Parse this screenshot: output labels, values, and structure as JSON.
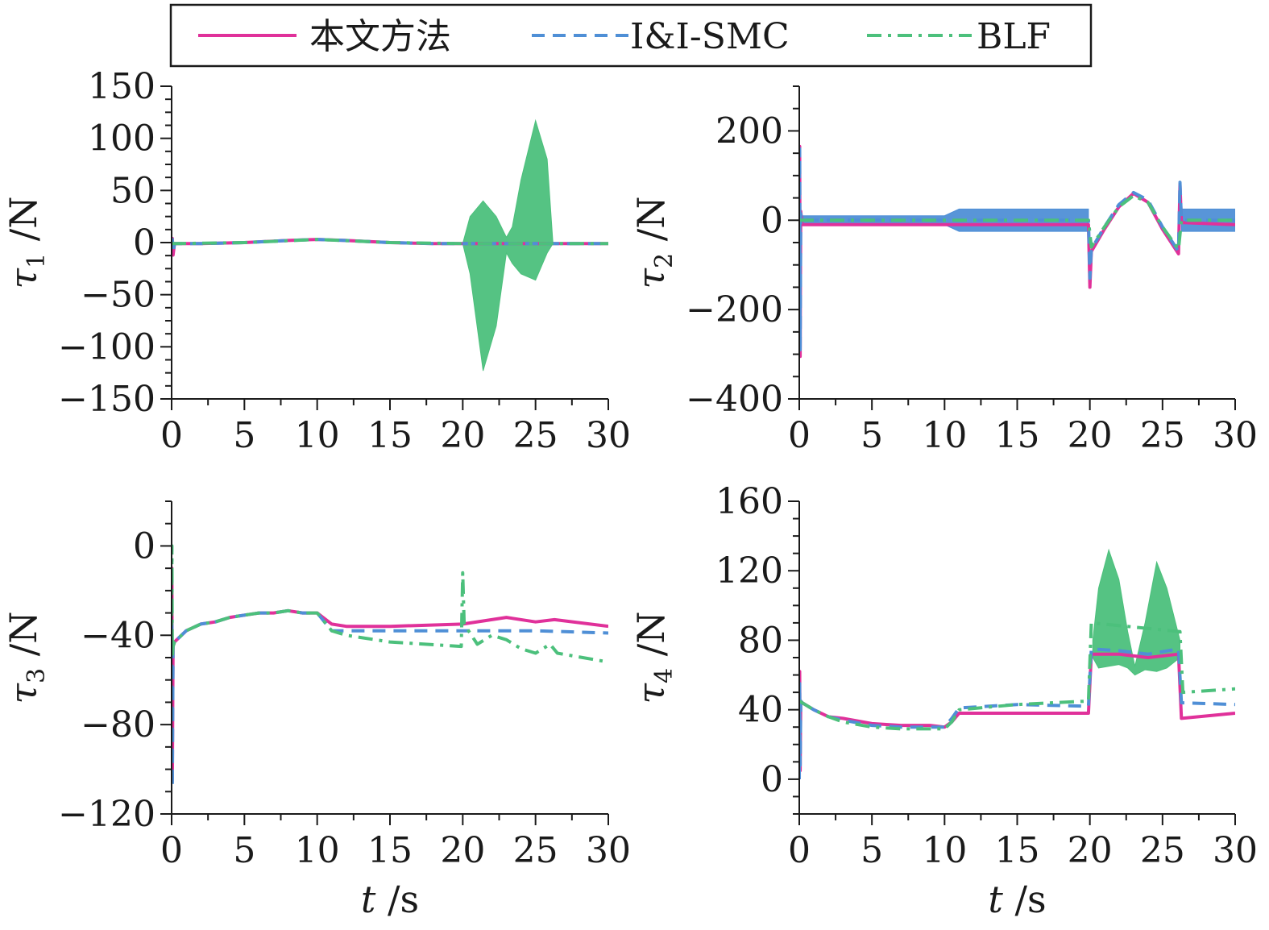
{
  "legend": {
    "entries": [
      {
        "label": "本文方法",
        "color": "#e0319a",
        "dash": "solid"
      },
      {
        "label": "I&I-SMC",
        "color": "#4f8fd6",
        "dash": "dashed"
      },
      {
        "label": "BLF",
        "color": "#4cc07c",
        "dash": "dashdot"
      }
    ]
  },
  "chart_data": [
    {
      "type": "line",
      "id": "tau1",
      "ylabel_sym": "τ",
      "ylabel_sub": "1",
      "ylabel_unit": " /N",
      "xlabel": "",
      "xlim": [
        0,
        30
      ],
      "ylim": [
        -150,
        150
      ],
      "xticks": [
        0,
        5,
        10,
        15,
        20,
        25,
        30
      ],
      "yticks": [
        -150,
        -100,
        -50,
        0,
        50,
        100,
        150
      ],
      "ytick_labels": [
        "−150",
        "−100",
        "−50",
        "0",
        "50",
        "100",
        "150"
      ],
      "series": [
        {
          "name": "本文方法",
          "color": "#e0319a",
          "dash": "solid",
          "x": [
            0,
            0.05,
            0.1,
            0.2,
            2,
            5,
            8,
            10,
            12,
            15,
            18,
            20,
            22,
            25,
            27,
            30
          ],
          "y": [
            0,
            4,
            -12,
            -1,
            -1,
            0,
            2,
            3,
            2,
            0,
            -1,
            -1,
            -1,
            -1,
            -1,
            -1
          ]
        },
        {
          "name": "I&I-SMC",
          "color": "#4f8fd6",
          "dash": "dashed",
          "x": [
            0,
            0.05,
            0.1,
            0.2,
            2,
            5,
            8,
            10,
            12,
            15,
            18,
            20,
            22,
            25,
            27,
            30
          ],
          "y": [
            0,
            3,
            -10,
            -1,
            -1,
            0,
            2,
            3,
            2,
            0,
            -1,
            -1,
            -1,
            -1,
            -1,
            -1
          ]
        },
        {
          "name": "BLF",
          "color": "#4cc07c",
          "dash": "dashdot",
          "x": [
            0,
            0.2,
            5,
            10,
            15,
            20,
            30
          ],
          "y": [
            -1,
            -1,
            0,
            3,
            0,
            -1,
            -1
          ]
        }
      ],
      "bands": [
        {
          "series": "BLF",
          "color": "#4cc07c",
          "x": [
            20,
            20.5,
            21.4,
            22.3,
            23.0,
            23.4,
            24.0,
            25.0,
            25.8,
            26.2
          ],
          "upper": [
            -1,
            25,
            40,
            25,
            5,
            15,
            60,
            117,
            80,
            -1
          ],
          "lower": [
            -1,
            -30,
            -123,
            -80,
            -10,
            -20,
            -30,
            -36,
            -10,
            -1
          ]
        }
      ]
    },
    {
      "type": "line",
      "id": "tau2",
      "ylabel_sym": "τ",
      "ylabel_sub": "2",
      "ylabel_unit": " /N",
      "xlabel": "",
      "xlim": [
        0,
        30
      ],
      "ylim": [
        -400,
        300
      ],
      "xticks": [
        0,
        5,
        10,
        15,
        20,
        25,
        30
      ],
      "yticks": [
        -400,
        -200,
        0,
        200
      ],
      "ytick_labels": [
        "−400",
        "−200",
        "0",
        "200"
      ],
      "series": [
        {
          "name": "本文方法",
          "color": "#e0319a",
          "dash": "solid",
          "x": [
            0,
            0.03,
            0.06,
            0.1,
            0.2,
            10,
            19.9,
            20.0,
            20.1,
            21,
            22,
            23,
            24,
            25,
            26.1,
            26.2,
            26.3,
            30
          ],
          "y": [
            0,
            165,
            -305,
            20,
            -10,
            -10,
            -10,
            -150,
            -70,
            -20,
            30,
            60,
            40,
            -20,
            -75,
            80,
            -5,
            -10
          ]
        },
        {
          "name": "I&I-SMC",
          "color": "#4f8fd6",
          "dash": "dashed",
          "x": [
            0,
            0.03,
            0.06,
            0.1,
            0.2,
            10,
            19.9,
            20.0,
            20.1,
            21,
            22,
            23,
            24,
            25,
            26.1,
            26.2,
            26.3,
            30
          ],
          "y": [
            0,
            160,
            -290,
            15,
            0,
            0,
            0,
            -130,
            -65,
            -15,
            35,
            62,
            45,
            -15,
            -70,
            85,
            0,
            0
          ]
        },
        {
          "name": "BLF",
          "color": "#4cc07c",
          "dash": "dashdot",
          "x": [
            0,
            0.2,
            10,
            19.9,
            20.1,
            21,
            22,
            23,
            24,
            25,
            26.1,
            26.3,
            30
          ],
          "y": [
            0,
            0,
            0,
            0,
            -60,
            -15,
            30,
            55,
            40,
            -15,
            -65,
            0,
            0
          ]
        }
      ],
      "bands": [
        {
          "series": "I&I-SMC",
          "color": "#4f8fd6",
          "x": [
            0.2,
            10,
            11,
            19.9
          ],
          "upper": [
            10,
            10,
            25,
            25
          ],
          "lower": [
            -10,
            -10,
            -25,
            -25
          ]
        },
        {
          "series": "I&I-SMC",
          "color": "#4f8fd6",
          "x": [
            26.3,
            30
          ],
          "upper": [
            25,
            25
          ],
          "lower": [
            -25,
            -25
          ]
        }
      ]
    },
    {
      "type": "line",
      "id": "tau3",
      "ylabel_sym": "τ",
      "ylabel_sub": "3",
      "ylabel_unit": " /N",
      "xlabel": "t /s",
      "xlim": [
        0,
        30
      ],
      "ylim": [
        -120,
        20
      ],
      "xticks": [
        0,
        5,
        10,
        15,
        20,
        25,
        30
      ],
      "yticks": [
        -120,
        -80,
        -40,
        0
      ],
      "ytick_labels": [
        "−120",
        "−80",
        "−40",
        "0"
      ],
      "series": [
        {
          "name": "本文方法",
          "color": "#e0319a",
          "dash": "solid",
          "x": [
            0,
            0.02,
            0.05,
            0.1,
            0.2,
            1,
            2,
            3,
            4,
            5,
            6,
            7,
            8,
            9,
            10,
            11,
            12,
            15,
            20,
            23,
            25,
            26.3,
            30
          ],
          "y": [
            -45,
            -10,
            -105,
            -45,
            -43,
            -38,
            -35,
            -34,
            -32,
            -31,
            -30,
            -30,
            -29,
            -30,
            -30,
            -35,
            -36,
            -36,
            -35,
            -32,
            -34,
            -33,
            -36
          ]
        },
        {
          "name": "I&I-SMC",
          "color": "#4f8fd6",
          "dash": "dashed",
          "x": [
            0,
            0.02,
            0.05,
            0.1,
            0.2,
            1,
            2,
            3,
            4,
            5,
            6,
            7,
            8,
            9,
            10,
            11,
            12,
            15,
            20,
            25,
            30
          ],
          "y": [
            -45,
            -35,
            -108,
            -45,
            -43,
            -38,
            -35,
            -34,
            -32,
            -31,
            -30,
            -30,
            -29,
            -30,
            -30,
            -38,
            -38,
            -38,
            -38,
            -38,
            -39
          ]
        },
        {
          "name": "BLF",
          "color": "#4cc07c",
          "dash": "dashdot",
          "x": [
            0,
            0.02,
            0.05,
            0.1,
            0.2,
            1,
            2,
            3,
            4,
            5,
            6,
            7,
            8,
            9,
            10,
            11,
            12,
            15,
            19.9,
            20.0,
            20.1,
            21,
            22,
            23,
            24,
            25,
            26,
            26.5,
            30
          ],
          "y": [
            -45,
            0,
            -50,
            -45,
            -43,
            -38,
            -35,
            -34,
            -32,
            -31,
            -30,
            -30,
            -29,
            -30,
            -30,
            -38,
            -40,
            -43,
            -45,
            -12,
            -35,
            -44,
            -40,
            -42,
            -46,
            -48,
            -44,
            -48,
            -52
          ]
        }
      ],
      "bands": []
    },
    {
      "type": "line",
      "id": "tau4",
      "ylabel_sym": "τ",
      "ylabel_sub": "4",
      "ylabel_unit": " /N",
      "xlabel": "t /s",
      "xlim": [
        0,
        30
      ],
      "ylim": [
        -20,
        160
      ],
      "xticks": [
        0,
        5,
        10,
        15,
        20,
        25,
        30
      ],
      "yticks": [
        0,
        40,
        80,
        120,
        160
      ],
      "ytick_labels": [
        "0",
        "40",
        "80",
        "120",
        "160"
      ],
      "series": [
        {
          "name": "本文方法",
          "color": "#e0319a",
          "dash": "solid",
          "x": [
            0,
            0.03,
            0.06,
            0.1,
            0.2,
            1,
            2,
            3,
            5,
            7,
            9,
            10,
            10.5,
            11,
            15,
            19.9,
            20.1,
            22,
            24,
            26.1,
            26.3,
            30
          ],
          "y": [
            0,
            62,
            5,
            45,
            44,
            40,
            36,
            35,
            32,
            31,
            31,
            30,
            33,
            38,
            38,
            38,
            72,
            72,
            70,
            72,
            35,
            38
          ]
        },
        {
          "name": "I&I-SMC",
          "color": "#4f8fd6",
          "dash": "dashed",
          "x": [
            0,
            0.03,
            0.06,
            0.1,
            0.2,
            1,
            2,
            3,
            5,
            7,
            9,
            10,
            10.5,
            11,
            15,
            19.9,
            20.1,
            22,
            24,
            26.1,
            26.3,
            30
          ],
          "y": [
            0,
            55,
            8,
            45,
            44,
            40,
            36,
            34,
            31,
            30,
            30,
            30,
            35,
            41,
            43,
            42,
            75,
            74,
            72,
            75,
            44,
            43
          ]
        },
        {
          "name": "BLF",
          "color": "#4cc07c",
          "dash": "dashdot",
          "x": [
            0,
            0.2,
            1,
            2,
            3,
            5,
            7,
            9,
            10,
            10.5,
            11,
            15,
            19.9,
            20.1,
            26.2,
            26.4,
            30
          ],
          "y": [
            45,
            44,
            40,
            36,
            33,
            30,
            29,
            29,
            29,
            33,
            40,
            43,
            45,
            90,
            85,
            50,
            52
          ]
        }
      ],
      "bands": [
        {
          "series": "BLF",
          "color": "#4cc07c",
          "x": [
            20.2,
            20.6,
            21.3,
            22.0,
            22.6,
            23.1,
            23.8,
            24.6,
            25.3,
            26.2
          ],
          "upper": [
            80,
            110,
            132,
            115,
            85,
            65,
            90,
            125,
            110,
            80
          ],
          "lower": [
            70,
            64,
            65,
            66,
            64,
            60,
            63,
            62,
            64,
            70
          ]
        }
      ]
    }
  ]
}
